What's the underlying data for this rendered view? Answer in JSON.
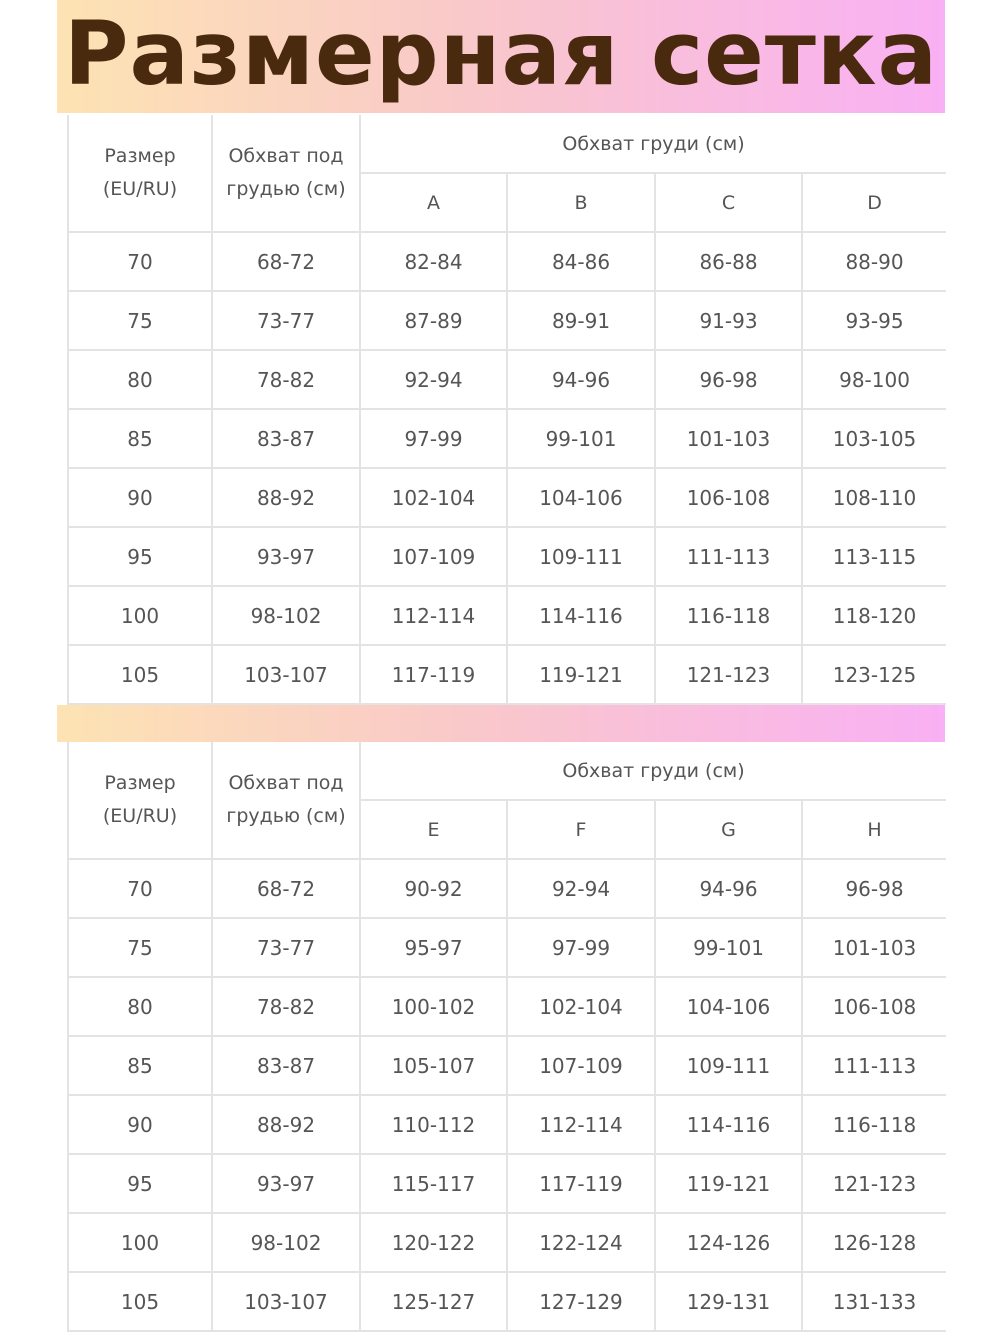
{
  "title": "Размерная сетка",
  "colors": {
    "title": "#4a2a0e",
    "gradient_start": "#fde3b3",
    "gradient_end": "#f9b0f4",
    "text": "#555555",
    "grid": "#e3e3e3"
  },
  "headers": {
    "size": "Размер (EU/RU)",
    "underbust": "Обхват под грудью (см)",
    "bust": "Обхват груди (см)"
  },
  "tables": [
    {
      "cups": [
        "A",
        "B",
        "C",
        "D"
      ],
      "rows": [
        [
          "70",
          "68-72",
          "82-84",
          "84-86",
          "86-88",
          "88-90"
        ],
        [
          "75",
          "73-77",
          "87-89",
          "89-91",
          "91-93",
          "93-95"
        ],
        [
          "80",
          "78-82",
          "92-94",
          "94-96",
          "96-98",
          "98-100"
        ],
        [
          "85",
          "83-87",
          "97-99",
          "99-101",
          "101-103",
          "103-105"
        ],
        [
          "90",
          "88-92",
          "102-104",
          "104-106",
          "106-108",
          "108-110"
        ],
        [
          "95",
          "93-97",
          "107-109",
          "109-111",
          "111-113",
          "113-115"
        ],
        [
          "100",
          "98-102",
          "112-114",
          "114-116",
          "116-118",
          "118-120"
        ],
        [
          "105",
          "103-107",
          "117-119",
          "119-121",
          "121-123",
          "123-125"
        ]
      ]
    },
    {
      "cups": [
        "E",
        "F",
        "G",
        "H"
      ],
      "rows": [
        [
          "70",
          "68-72",
          "90-92",
          "92-94",
          "94-96",
          "96-98"
        ],
        [
          "75",
          "73-77",
          "95-97",
          "97-99",
          "99-101",
          "101-103"
        ],
        [
          "80",
          "78-82",
          "100-102",
          "102-104",
          "104-106",
          "106-108"
        ],
        [
          "85",
          "83-87",
          "105-107",
          "107-109",
          "109-111",
          "111-113"
        ],
        [
          "90",
          "88-92",
          "110-112",
          "112-114",
          "114-116",
          "116-118"
        ],
        [
          "95",
          "93-97",
          "115-117",
          "117-119",
          "119-121",
          "121-123"
        ],
        [
          "100",
          "98-102",
          "120-122",
          "122-124",
          "124-126",
          "126-128"
        ],
        [
          "105",
          "103-107",
          "125-127",
          "127-129",
          "129-131",
          "131-133"
        ]
      ]
    }
  ]
}
